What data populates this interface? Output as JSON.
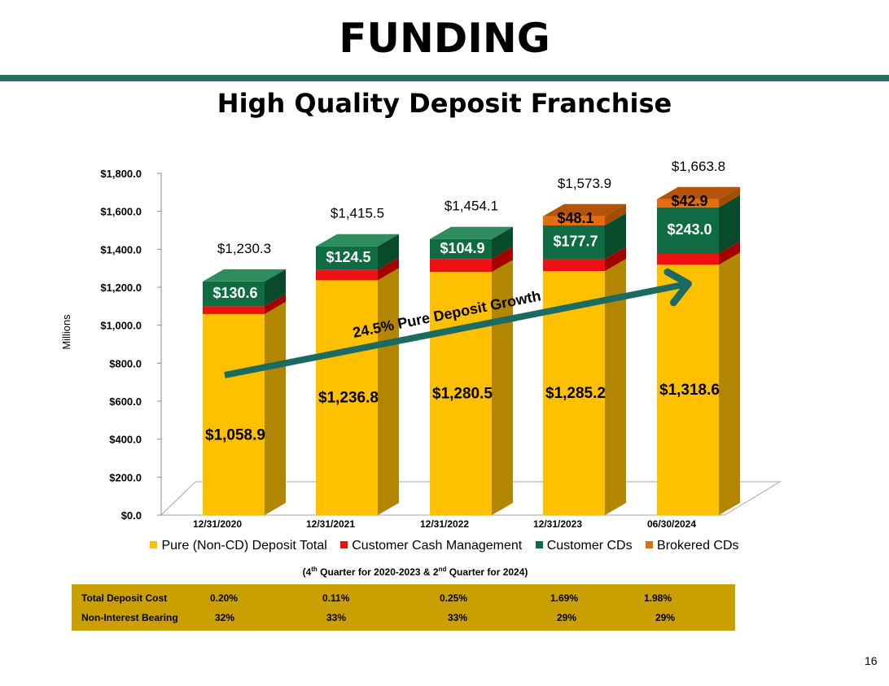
{
  "header": {
    "title": "FUNDING",
    "subtitle": "High Quality Deposit Franchise"
  },
  "chart_data": {
    "type": "bar",
    "stacked": true,
    "ylabel": "Millions",
    "ylim": [
      0,
      1800
    ],
    "yticks": [
      "$0.0",
      "$200.0",
      "$400.0",
      "$600.0",
      "$800.0",
      "$1,000.0",
      "$1,200.0",
      "$1,400.0",
      "$1,600.0",
      "$1,800.0"
    ],
    "categories": [
      "12/31/2020",
      "12/31/2021",
      "12/31/2022",
      "12/31/2023",
      "06/30/2024"
    ],
    "series": [
      {
        "name": "Pure (Non-CD) Deposit Total",
        "color": "#ffc000",
        "side_color": "#b38600",
        "top_color": "#ffd24d",
        "values": [
          1058.9,
          1236.8,
          1280.5,
          1285.2,
          1318.6
        ],
        "labels": [
          "$1,058.9",
          "$1,236.8",
          "$1,280.5",
          "$1,285.2",
          "$1,318.6"
        ]
      },
      {
        "name": "Customer Cash Management",
        "color": "#ee1111",
        "side_color": "#a40000",
        "top_color": "#ff5a5a",
        "values": [
          40.8,
          54.2,
          68.7,
          62.9,
          59.3
        ],
        "labels": [
          "",
          "",
          "",
          "",
          ""
        ]
      },
      {
        "name": "Customer CDs",
        "color": "#0f6b42",
        "side_color": "#084a2c",
        "top_color": "#2e8c5f",
        "values": [
          130.6,
          124.5,
          104.9,
          177.7,
          243.0
        ],
        "labels": [
          "$130.6",
          "$124.5",
          "$104.9",
          "$177.7",
          "$243.0"
        ]
      },
      {
        "name": "Brokered CDs",
        "color": "#e46c0a",
        "side_color": "#a34c04",
        "top_color": "#b45408",
        "values": [
          0,
          0,
          0,
          48.1,
          42.9
        ],
        "labels": [
          "",
          "",
          "",
          "$48.1",
          "$42.9"
        ]
      }
    ],
    "totals": [
      "$1,230.3",
      "$1,415.5",
      "$1,454.1",
      "$1,573.9",
      "$1,663.8"
    ],
    "annotation": "24.5% Pure Deposit Growth",
    "legend_position": "bottom"
  },
  "footnote": {
    "prefix": "(4",
    "sup1": "th",
    "middle": " Quarter for 2020-2023 & 2",
    "sup2": "nd",
    "suffix": " Quarter for 2024)"
  },
  "stats_table": {
    "rows": [
      {
        "label": "Total Deposit Cost",
        "values": [
          "0.20%",
          "0.11%",
          "0.25%",
          "1.69%",
          "1.98%"
        ]
      },
      {
        "label": "Non-Interest Bearing",
        "values": [
          "32%",
          "33%",
          "33%",
          "29%",
          "29%"
        ]
      }
    ]
  },
  "page_number": "16"
}
